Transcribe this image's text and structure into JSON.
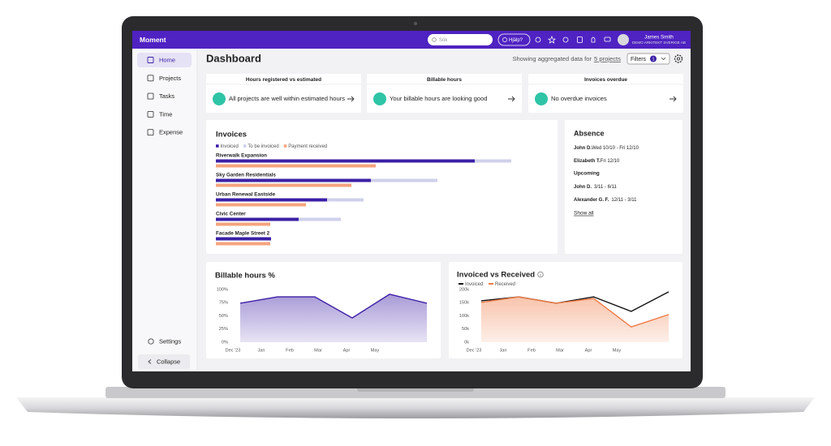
{
  "app": {
    "brand": "Moment",
    "search_placeholder": "Sök",
    "help": "Hjälp?",
    "user": {
      "name": "James Smith",
      "company": "DEMO ARKITEKT SVERIGE AB"
    }
  },
  "nav": [
    "Home",
    "Projects",
    "Tasks",
    "Time",
    "Expense"
  ],
  "settings": "Settings",
  "collapse": "Collapse",
  "header": {
    "title": "Dashboard",
    "note": "Showing aggregated data for",
    "projects_link": "5 projects",
    "filters": "Filters",
    "filters_count": "1"
  },
  "status_cards": [
    {
      "title": "Hours registered vs estimated",
      "message": "All projects are well within estimated hours"
    },
    {
      "title": "Billable hours",
      "message": "Your billable hours are looking good"
    },
    {
      "title": "Invoices overdue",
      "message": "No overdue invoices"
    }
  ],
  "absence": {
    "title": "Absence",
    "current": [
      {
        "name": "John D.",
        "dates": "Wed 10/10 - Fri 12/10"
      },
      {
        "name": "Elizabeth T.",
        "dates": "Fri 12/10"
      }
    ],
    "upcoming_title": "Upcoming",
    "upcoming": [
      {
        "name": "John D.",
        "dates": "3/11 - 6/11"
      },
      {
        "name": "Alexander G. F.",
        "dates": "12/11 - 3/11"
      }
    ],
    "show_all": "Show all"
  },
  "chart_data": [
    {
      "type": "bar",
      "orientation": "horizontal",
      "title": "Invoices",
      "categories": [
        "Riverwalk Expansion",
        "Sky Garden Residentials",
        "Urban Renewal Eastside",
        "Civic Center",
        "Facade Maple Street 2"
      ],
      "xlim": [
        0,
        380
      ],
      "series": [
        {
          "name": "Invoiced",
          "color": "#3b1fa6",
          "stack_group": 1,
          "values": [
            319,
            191,
            137,
            102,
            68
          ]
        },
        {
          "name": "To be invoiced",
          "color": "#cfd0ea",
          "stack_group": 1,
          "values": [
            45,
            82,
            45,
            52,
            0
          ]
        },
        {
          "name": "Payment received",
          "color": "#f5a47e",
          "stack_group": 2,
          "values": [
            197,
            167,
            111,
            67,
            67
          ]
        }
      ]
    },
    {
      "type": "area",
      "title": "Billable hours %",
      "categories": [
        "Dec '23",
        "Jan",
        "Feb",
        "Mar",
        "Apr",
        "May"
      ],
      "values": [
        74,
        86,
        86,
        46,
        91,
        74
      ],
      "color": "#3d1fa6",
      "ylim": [
        0,
        100
      ],
      "yticks": [
        {
          "value": 0,
          "label": "0%"
        },
        {
          "value": 25,
          "label": "25%"
        },
        {
          "value": 50,
          "label": "50%"
        },
        {
          "value": 75,
          "label": "75%"
        },
        {
          "value": 100,
          "label": "100%"
        }
      ]
    },
    {
      "type": "line",
      "title": "Invoiced vs Received",
      "categories": [
        "Dec '23",
        "Jan",
        "Feb",
        "Mar",
        "Apr",
        "May"
      ],
      "ylim": [
        0,
        200000
      ],
      "yticks": [
        {
          "value": 0,
          "label": "0k"
        },
        {
          "value": 50000,
          "label": "50k"
        },
        {
          "value": 100000,
          "label": "100k"
        },
        {
          "value": 150000,
          "label": "150k"
        },
        {
          "value": 200000,
          "label": "200k"
        }
      ],
      "series": [
        {
          "name": "Invoiced",
          "color": "#111111",
          "area": false,
          "values": [
            157000,
            172000,
            148000,
            172000,
            117000,
            191000
          ]
        },
        {
          "name": "Received",
          "color": "#f07b45",
          "area": true,
          "values": [
            151000,
            172000,
            148000,
            166000,
            58000,
            105000
          ]
        }
      ]
    }
  ]
}
